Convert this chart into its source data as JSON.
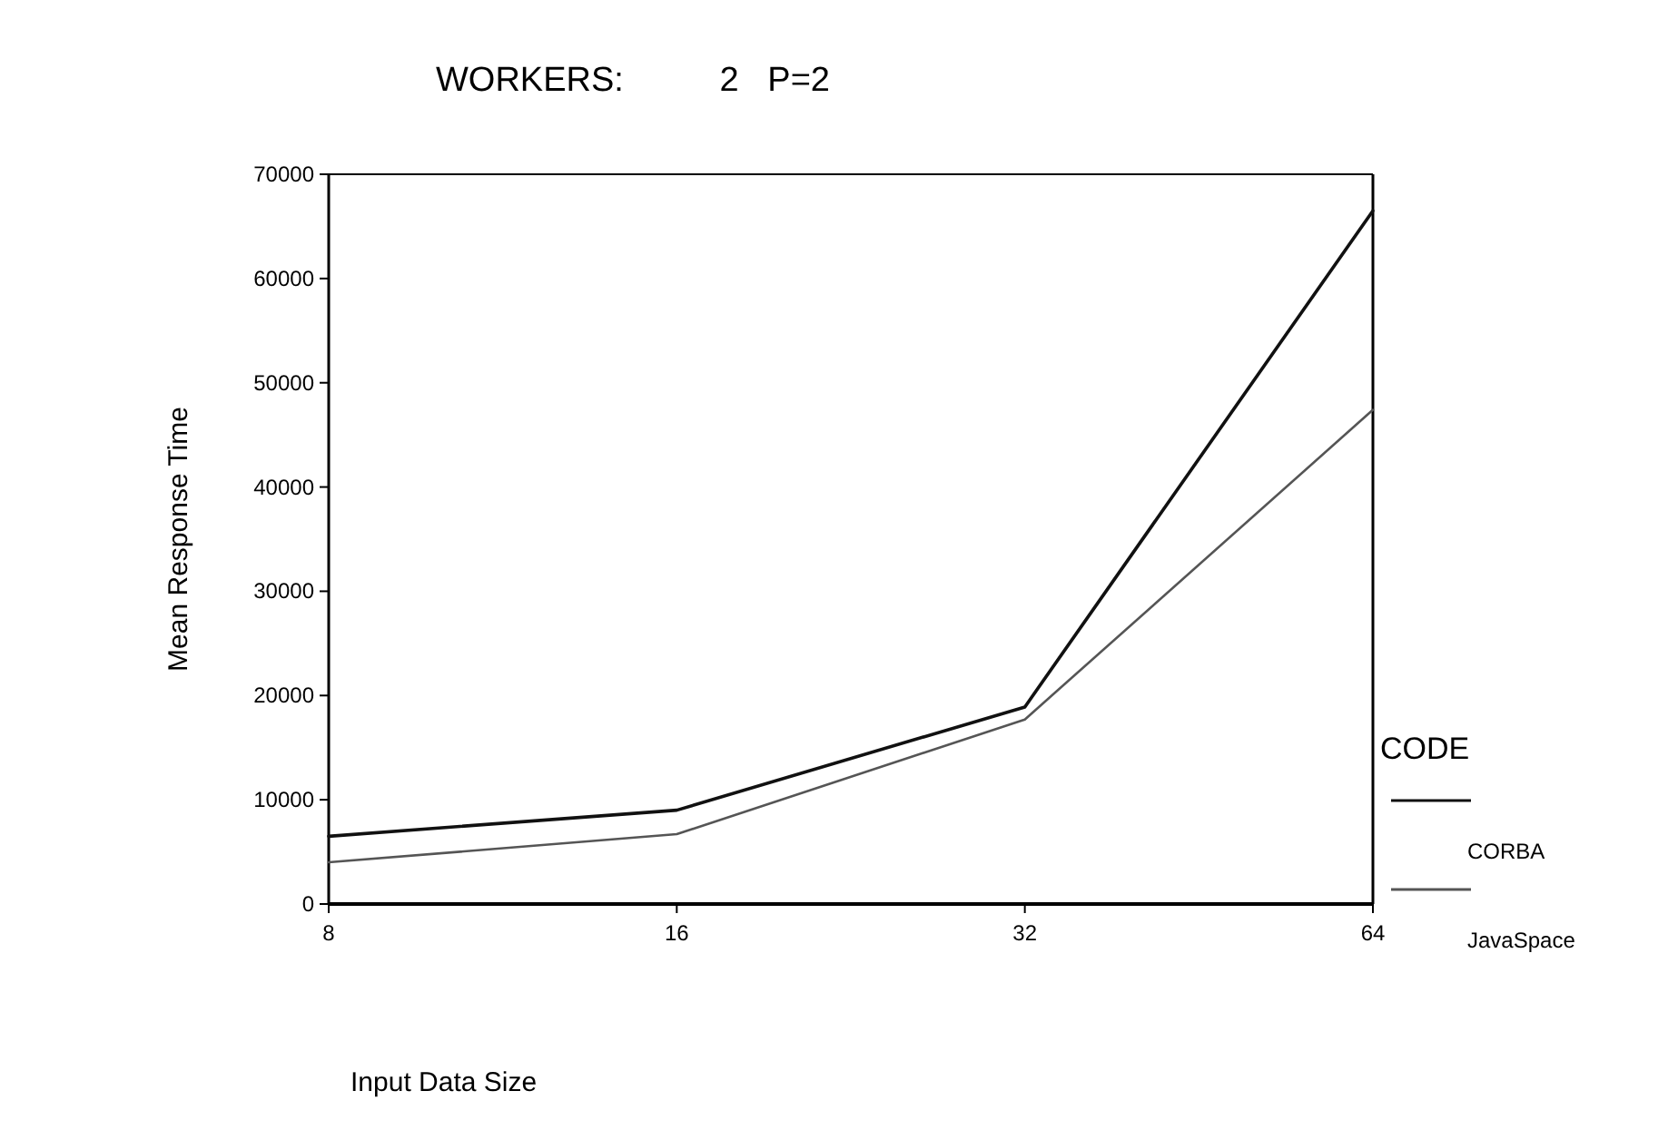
{
  "chart_data": {
    "type": "line",
    "title": "WORKERS:          2   P=2",
    "xlabel": "Input Data Size",
    "ylabel": "Mean Response Time",
    "legend_title": "CODE",
    "legend": "right",
    "log": "x",
    "grid": false,
    "marker": "none",
    "line_style": "solid",
    "x": [
      8,
      16,
      32,
      64
    ],
    "xlim": [
      8,
      64
    ],
    "xticks": [
      8,
      16,
      32,
      64
    ],
    "ylim": [
      0,
      70000
    ],
    "yticks": [
      0,
      10000,
      20000,
      30000,
      40000,
      50000,
      60000,
      70000
    ],
    "series": [
      {
        "name": "CORBA",
        "color": "#111111",
        "values": [
          6500,
          9000,
          18900,
          66500
        ]
      },
      {
        "name": "JavaSpace",
        "color": "#555555",
        "values": [
          4000,
          6700,
          17700,
          47400
        ]
      }
    ]
  }
}
